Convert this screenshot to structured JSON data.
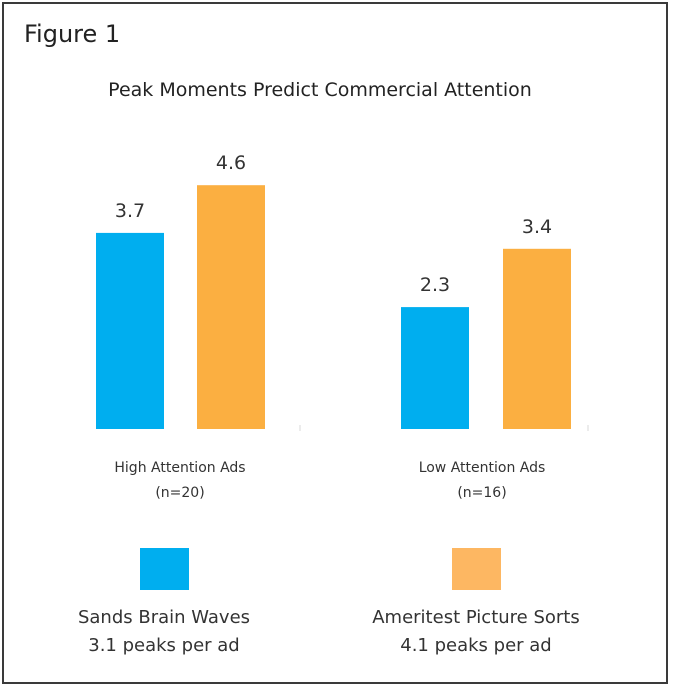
{
  "figure_label": "Figure 1",
  "chart_data": {
    "type": "bar",
    "title": "Peak Moments Predict Commercial Attention",
    "xlabel": "",
    "ylabel": "",
    "ylim": [
      0,
      5
    ],
    "grid": false,
    "categories": [
      {
        "label": "High Attention Ads",
        "sublabel": "(n=20)"
      },
      {
        "label": "Low Attention Ads",
        "sublabel": "(n=16)"
      }
    ],
    "series": [
      {
        "name": "Sands Brain Waves",
        "note": "3.1 peaks per ad",
        "color": "#00AEEF",
        "legend_color": "#00AEEF",
        "values": [
          3.7,
          2.3
        ],
        "labels": [
          "3.7",
          "2.3"
        ]
      },
      {
        "name": "Ameritest Picture Sorts",
        "note": "4.1 peaks per ad",
        "color": "#FBAF41",
        "legend_color": "#FDB762",
        "values": [
          4.6,
          3.4
        ],
        "labels": [
          "4.6",
          "3.4"
        ]
      }
    ],
    "legend_position": "bottom"
  }
}
